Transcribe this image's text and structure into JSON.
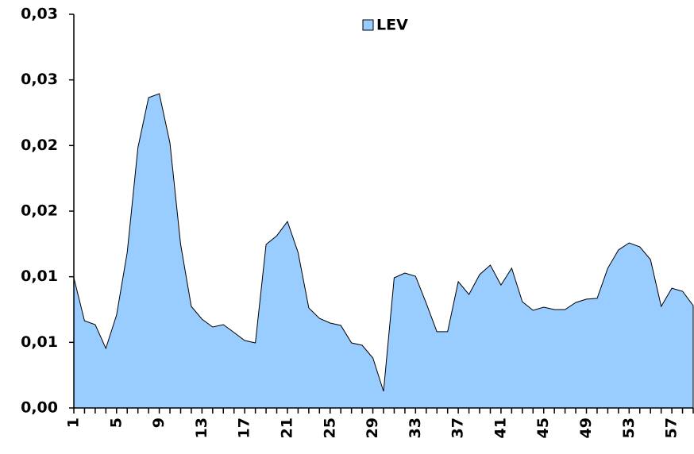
{
  "chart_data": {
    "type": "area",
    "categories": [
      "1",
      null,
      null,
      null,
      "5",
      null,
      null,
      null,
      "9",
      null,
      null,
      null,
      "13",
      null,
      null,
      null,
      "17",
      null,
      null,
      null,
      "21",
      null,
      null,
      null,
      "25",
      null,
      null,
      null,
      "29",
      null,
      null,
      null,
      "33",
      null,
      null,
      null,
      "37",
      null,
      null,
      null,
      "41",
      null,
      null,
      null,
      "45",
      null,
      null,
      null,
      "49",
      null,
      null,
      null,
      "53",
      null,
      null,
      null,
      "57",
      null,
      null
    ],
    "series": [
      {
        "name": "LEV",
        "color": "#99ccff",
        "values": [
          0.00992,
          0.00665,
          0.00635,
          0.00454,
          0.00708,
          0.01185,
          0.01984,
          0.02365,
          0.02395,
          0.0202,
          0.01246,
          0.00774,
          0.00677,
          0.00617,
          0.00635,
          0.00575,
          0.00514,
          0.00496,
          0.01246,
          0.01312,
          0.01421,
          0.01185,
          0.00762,
          0.00683,
          0.00647,
          0.00629,
          0.00496,
          0.00478,
          0.00381,
          0.00127,
          0.00992,
          0.01028,
          0.01004,
          0.00798,
          0.00581,
          0.00581,
          0.00962,
          0.00865,
          0.01016,
          0.01089,
          0.00937,
          0.01065,
          0.0081,
          0.00744,
          0.00768,
          0.0075,
          0.0075,
          0.00804,
          0.00829,
          0.00835,
          0.01065,
          0.01204,
          0.01258,
          0.01228,
          0.01131,
          0.00774,
          0.00913,
          0.00889,
          0.0078
        ]
      }
    ],
    "ylim": [
      0,
      0.03
    ],
    "yticks": [
      {
        "value": 0,
        "label": "0,00"
      },
      {
        "value": 0.005,
        "label": "0,01"
      },
      {
        "value": 0.01,
        "label": "0,01"
      },
      {
        "value": 0.015,
        "label": "0,02"
      },
      {
        "value": 0.02,
        "label": "0,02"
      },
      {
        "value": 0.025,
        "label": "0,03"
      },
      {
        "value": 0.03,
        "label": "0,03"
      }
    ],
    "legend": "top"
  }
}
